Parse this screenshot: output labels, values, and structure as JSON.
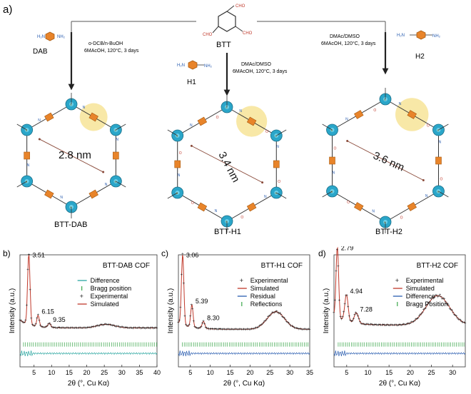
{
  "panel_labels": {
    "a": "a)",
    "b": "b)",
    "c": "c)",
    "d": "d)"
  },
  "scheme": {
    "center_reagent": "BTT",
    "left_reagent": "DAB",
    "mid_reagent": "H1",
    "right_reagent": "H2",
    "left_conditions": [
      "o-DCB/n-BuOH",
      "6MAcOH, 120°C, 3 days"
    ],
    "mid_conditions": [
      "DMAc/DMSO",
      "6MAcOH, 120°C, 3 days"
    ],
    "right_conditions": [
      "DMAc/DMSO",
      "6MAcOH, 120°C, 3 days"
    ],
    "products": [
      {
        "name": "BTT-DAB",
        "pore": "2.8 nm"
      },
      {
        "name": "BTT-H1",
        "pore": "3.4 nm"
      },
      {
        "name": "BTT-H2",
        "pore": "3.6 nm"
      }
    ],
    "atom_labels": {
      "cho": "CHO",
      "h2n": "H₂N",
      "nh2": "NH₂",
      "n": "N",
      "o": "O",
      "s": "S",
      "h": "H"
    },
    "colors": {
      "thiophene": "#2aa6c9",
      "benzene": "#e8842a",
      "highlight": "#f6e08a",
      "bond": "#333333"
    }
  },
  "chart_data": [
    {
      "type": "line",
      "title": "BTT-DAB COF",
      "xlabel": "2θ (°, Cu Kα)",
      "ylabel": "Intensity (a.u.)",
      "xlim": [
        1,
        40
      ],
      "xticks": [
        "5",
        "10",
        "15",
        "20",
        "25",
        "30",
        "35",
        "40"
      ],
      "ylim": [
        0,
        1.1
      ],
      "legend": [
        "Difference",
        "Bragg position",
        "Experimental",
        "Simulated"
      ],
      "legend_colors": [
        "#2aa6a0",
        "#3aa64a",
        "#222222",
        "#c0392b"
      ],
      "peak_labels": [
        {
          "x": 3.51,
          "text": "3.51"
        },
        {
          "x": 6.15,
          "text": "6.15"
        },
        {
          "x": 9.35,
          "text": "9.35"
        }
      ],
      "peaks": [
        {
          "x": 3.51,
          "h": 1.0,
          "w": 0.35
        },
        {
          "x": 6.15,
          "h": 0.16,
          "w": 0.35
        },
        {
          "x": 9.35,
          "h": 0.06,
          "w": 0.4
        },
        {
          "x": 25.5,
          "h": 0.05,
          "w": 2.5
        }
      ],
      "baseline": 0.14
    },
    {
      "type": "line",
      "title": "BTT-H1 COF",
      "xlabel": "2θ (°, Cu Kα)",
      "ylabel": "Intensity (a.u.)",
      "xlim": [
        2,
        35
      ],
      "xticks": [
        "5",
        "10",
        "15",
        "20",
        "25",
        "30",
        "35"
      ],
      "ylim": [
        0,
        1.1
      ],
      "legend": [
        "Experimental",
        "Simulated",
        "Residual",
        "Reflections"
      ],
      "legend_colors": [
        "#222222",
        "#c0392b",
        "#2a5db0",
        "#3aa64a"
      ],
      "peak_labels": [
        {
          "x": 3.06,
          "text": "3.06"
        },
        {
          "x": 5.39,
          "text": "5.39"
        },
        {
          "x": 8.3,
          "text": "8.30"
        }
      ],
      "peaks": [
        {
          "x": 3.06,
          "h": 1.0,
          "w": 0.3
        },
        {
          "x": 5.39,
          "h": 0.32,
          "w": 0.3
        },
        {
          "x": 8.3,
          "h": 0.1,
          "w": 0.35
        },
        {
          "x": 26.5,
          "h": 0.25,
          "w": 2.2
        }
      ],
      "baseline": 0.12
    },
    {
      "type": "line",
      "title": "BTT-H2 COF",
      "xlabel": "2θ (°, Cu Kα)",
      "ylabel": "Intensity (a.u.)",
      "xlim": [
        2,
        33
      ],
      "xticks": [
        "5",
        "10",
        "15",
        "20",
        "25",
        "30"
      ],
      "ylim": [
        0,
        1.1
      ],
      "legend": [
        "Experimental",
        "Simulated",
        "Difference",
        "Bragg Position"
      ],
      "legend_colors": [
        "#222222",
        "#c0392b",
        "#2a5db0",
        "#3aa64a"
      ],
      "peak_labels": [
        {
          "x": 2.79,
          "text": "2.79"
        },
        {
          "x": 4.94,
          "text": "4.94"
        },
        {
          "x": 7.28,
          "text": "7.28"
        }
      ],
      "peaks": [
        {
          "x": 2.79,
          "h": 1.0,
          "w": 0.3
        },
        {
          "x": 4.94,
          "h": 0.38,
          "w": 0.4
        },
        {
          "x": 7.28,
          "h": 0.15,
          "w": 0.5
        },
        {
          "x": 26.5,
          "h": 0.42,
          "w": 2.8
        }
      ],
      "baseline": 0.18
    }
  ]
}
